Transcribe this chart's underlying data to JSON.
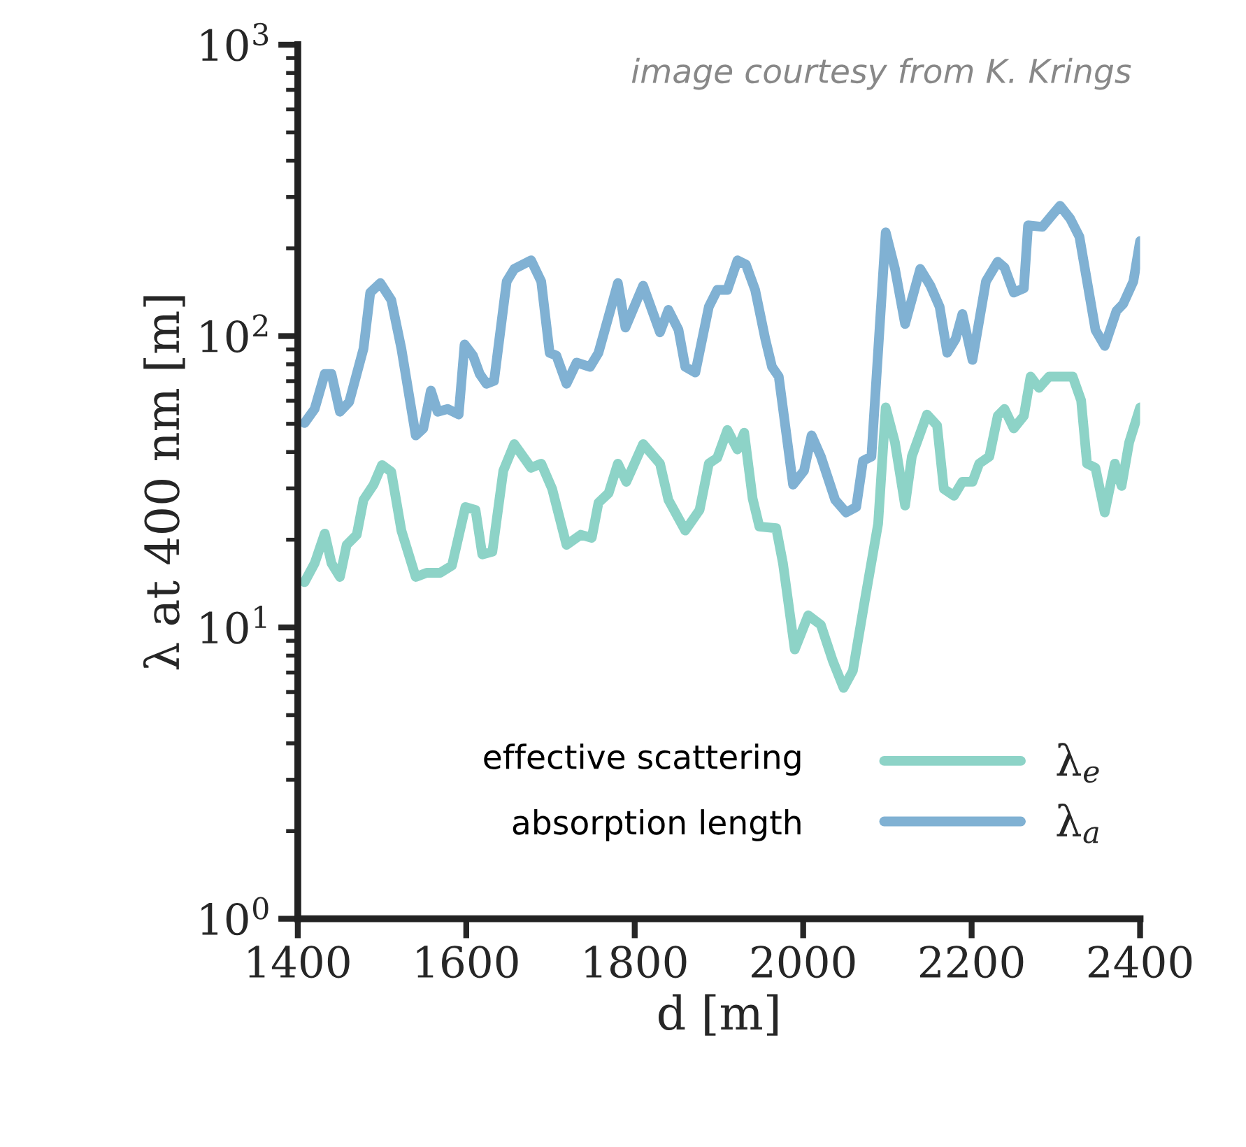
{
  "chart_data": {
    "type": "line",
    "xlabel": "d [m]",
    "ylabel": "λ at 400 nm [m]",
    "log": "y",
    "grid": false,
    "legend": "bottom right",
    "line_style": "solid",
    "marker": "none",
    "xlim": [
      1400,
      2400
    ],
    "xticks": [
      1400,
      1600,
      1800,
      2000,
      2200,
      2400
    ],
    "ylim": [
      1,
      1000
    ],
    "yticks": [
      {
        "value": 1,
        "label": "10$^{0}$"
      },
      {
        "value": 10,
        "label": "10$^{1}$"
      },
      {
        "value": 100,
        "label": "10$^{2}$"
      },
      {
        "value": 1000,
        "label": "10$^{3}$"
      }
    ],
    "annotations": [
      "image courtesy from K. Krings",
      "effective scattering",
      "absorption length"
    ],
    "series": [
      {
        "name": "λ$_{e}$",
        "color": "#8dd3c7",
        "x": [
          1408,
          1420,
          1432,
          1440,
          1450,
          1458,
          1470,
          1478,
          1490,
          1500,
          1511,
          1523,
          1540,
          1553,
          1569,
          1583,
          1599,
          1611,
          1619,
          1631,
          1644,
          1657,
          1677,
          1689,
          1702,
          1719,
          1736,
          1749,
          1757,
          1769,
          1780,
          1790,
          1810,
          1830,
          1840,
          1860,
          1877,
          1888,
          1898,
          1910,
          1922,
          1930,
          1940,
          1948,
          1968,
          1976,
          1990,
          2006,
          2021,
          2035,
          2048,
          2059,
          2073,
          2089,
          2098,
          2109,
          2121,
          2129,
          2147,
          2159,
          2167,
          2179,
          2189,
          2201,
          2209,
          2221,
          2231,
          2239,
          2250,
          2262,
          2270,
          2280,
          2292,
          2320,
          2330,
          2337,
          2347,
          2358,
          2370,
          2378,
          2387,
          2400
        ],
        "values": [
          14.3,
          16.6,
          21.0,
          16.6,
          14.9,
          19.2,
          20.8,
          27.4,
          30.9,
          36.1,
          34.2,
          21.5,
          14.9,
          15.4,
          15.4,
          16.3,
          25.9,
          25.3,
          17.8,
          18.2,
          34.5,
          42.6,
          35.3,
          36.5,
          29.9,
          19.2,
          20.8,
          20.3,
          26.8,
          28.9,
          36.5,
          31.6,
          42.6,
          36.5,
          27.4,
          21.5,
          25.3,
          36.5,
          38.2,
          47.6,
          40.8,
          46.6,
          27.7,
          22.2,
          21.9,
          16.6,
          8.4,
          11.0,
          10.2,
          7.7,
          6.2,
          7.1,
          12.3,
          22.7,
          56.9,
          43.1,
          26.2,
          38.6,
          53.8,
          49.3,
          29.9,
          28.3,
          31.6,
          31.6,
          36.5,
          38.6,
          53.2,
          56.2,
          48.2,
          53.2,
          72.6,
          66.4,
          72.6,
          72.6,
          60.1,
          36.5,
          35.3,
          24.8,
          36.5,
          30.6,
          43.1,
          56.9
        ]
      },
      {
        "name": "λ$_{a}$",
        "color": "#80b1d3",
        "x": [
          1408,
          1420,
          1432,
          1440,
          1450,
          1461,
          1478,
          1486,
          1498,
          1511,
          1523,
          1540,
          1549,
          1558,
          1566,
          1578,
          1591,
          1598,
          1608,
          1616,
          1624,
          1633,
          1648,
          1657,
          1677,
          1689,
          1699,
          1707,
          1719,
          1731,
          1747,
          1757,
          1780,
          1789,
          1810,
          1830,
          1840,
          1852,
          1860,
          1872,
          1888,
          1898,
          1910,
          1922,
          1932,
          1943,
          1955,
          1963,
          1971,
          1988,
          2001,
          2010,
          2021,
          2038,
          2051,
          2063,
          2071,
          2081,
          2098,
          2109,
          2121,
          2139,
          2151,
          2162,
          2171,
          2181,
          2189,
          2201,
          2217,
          2231,
          2239,
          2250,
          2262,
          2267,
          2284,
          2295,
          2305,
          2317,
          2328,
          2347,
          2358,
          2372,
          2380,
          2392,
          2400
        ],
        "values": [
          50.3,
          56.2,
          74.1,
          74.1,
          55.0,
          59.4,
          90.5,
          141,
          152,
          133,
          90.5,
          45.6,
          48.2,
          65.0,
          55.0,
          56.2,
          53.8,
          93.6,
          85.7,
          74.1,
          68.6,
          70.2,
          154,
          170,
          182,
          154,
          87.6,
          85.7,
          68.6,
          81.1,
          78.4,
          87.6,
          152,
          107,
          149,
          103,
          123,
          105,
          78.4,
          75.0,
          126,
          144,
          144,
          182,
          176,
          144,
          97.8,
          78.4,
          72.6,
          30.9,
          34.5,
          45.6,
          38.6,
          27.4,
          24.8,
          25.9,
          37.3,
          38.6,
          227,
          170,
          110,
          170,
          149,
          126,
          87.6,
          97.8,
          119,
          82.8,
          154,
          180,
          172,
          141,
          146,
          240,
          237,
          259,
          280,
          253,
          219,
          105,
          92.5,
          122,
          129,
          154,
          212
        ]
      }
    ]
  }
}
